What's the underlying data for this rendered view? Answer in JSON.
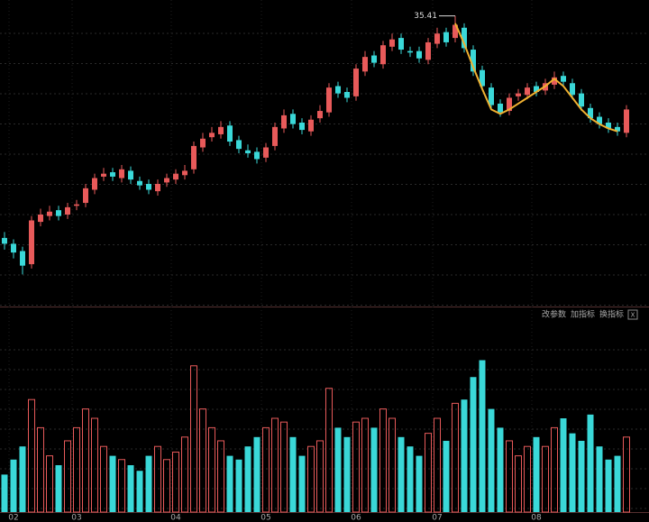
{
  "chart_data": {
    "type": "candlestick",
    "categories": [
      null,
      "02",
      null,
      null,
      null,
      null,
      null,
      null,
      "03",
      null,
      null,
      null,
      null,
      null,
      null,
      null,
      null,
      null,
      null,
      "04",
      null,
      null,
      null,
      null,
      null,
      null,
      null,
      null,
      null,
      "05",
      null,
      null,
      null,
      null,
      null,
      null,
      null,
      null,
      null,
      "06",
      null,
      null,
      null,
      null,
      null,
      null,
      null,
      null,
      "07",
      null,
      null,
      null,
      null,
      null,
      null,
      null,
      null,
      null,
      null,
      "08",
      null,
      null,
      null,
      null,
      null,
      null,
      null,
      null,
      null,
      null
    ],
    "open": [
      20.2,
      19.8,
      19.3,
      18.4,
      21.3,
      21.7,
      22.1,
      21.8,
      22.4,
      22.6,
      23.5,
      24.4,
      24.7,
      24.3,
      24.8,
      24.1,
      23.9,
      23.4,
      24.0,
      24.2,
      24.5,
      24.9,
      26.4,
      27.1,
      27.3,
      27.9,
      26.9,
      26.2,
      26.1,
      25.7,
      26.5,
      27.7,
      28.7,
      28.1,
      27.5,
      28.4,
      28.8,
      30.6,
      30.2,
      29.9,
      31.6,
      32.7,
      32.1,
      33.3,
      33.9,
      33.0,
      33.0,
      32.4,
      33.5,
      34.3,
      33.9,
      34.6,
      33.1,
      31.7,
      30.5,
      29.4,
      28.9,
      29.9,
      30.0,
      30.6,
      30.3,
      30.7,
      31.3,
      30.8,
      30.1,
      29.1,
      28.5,
      28.1,
      27.8,
      27.4
    ],
    "high": [
      20.6,
      20.1,
      19.6,
      21.7,
      22.2,
      22.4,
      22.4,
      22.6,
      22.8,
      23.9,
      24.6,
      25.0,
      25.0,
      25.2,
      25.1,
      24.4,
      24.2,
      24.2,
      24.6,
      24.9,
      25.2,
      26.8,
      27.4,
      27.8,
      28.2,
      28.2,
      27.2,
      26.6,
      26.4,
      26.7,
      28.1,
      29.0,
      29.0,
      28.4,
      28.6,
      29.3,
      30.8,
      30.9,
      30.5,
      32.1,
      33.0,
      33.0,
      33.7,
      34.2,
      34.2,
      33.3,
      33.3,
      33.9,
      34.6,
      34.6,
      35.41,
      34.9,
      33.4,
      32.0,
      30.8,
      29.7,
      30.1,
      30.4,
      30.8,
      30.9,
      31.1,
      31.6,
      31.6,
      31.1,
      30.4,
      29.4,
      28.8,
      28.4,
      28.1,
      29.3
    ],
    "low": [
      19.4,
      18.8,
      17.7,
      18.1,
      21.0,
      21.4,
      21.4,
      21.5,
      22.1,
      22.3,
      23.2,
      24.1,
      24.1,
      24.0,
      23.9,
      23.5,
      23.2,
      23.1,
      23.7,
      23.9,
      24.2,
      24.6,
      26.1,
      26.8,
      27.0,
      26.5,
      26.0,
      25.7,
      25.3,
      25.4,
      26.2,
      27.4,
      27.7,
      27.3,
      27.2,
      28.1,
      28.5,
      29.8,
      29.5,
      29.6,
      31.3,
      31.9,
      31.8,
      33.0,
      32.8,
      32.6,
      32.2,
      32.1,
      33.2,
      33.3,
      33.6,
      32.9,
      31.3,
      30.3,
      29.0,
      28.5,
      28.6,
      29.6,
      29.7,
      29.9,
      30.0,
      30.4,
      30.6,
      29.7,
      28.9,
      28.1,
      27.7,
      27.4,
      27.2,
      27.1
    ],
    "close": [
      19.8,
      19.2,
      18.3,
      21.4,
      21.8,
      22.0,
      21.7,
      22.3,
      22.5,
      23.6,
      24.3,
      24.6,
      24.4,
      24.9,
      24.2,
      23.8,
      23.5,
      23.9,
      24.3,
      24.6,
      24.8,
      26.5,
      27.0,
      27.4,
      27.8,
      26.8,
      26.3,
      26.0,
      25.6,
      26.4,
      27.8,
      28.6,
      28.0,
      27.6,
      28.3,
      28.9,
      30.5,
      30.1,
      29.8,
      31.8,
      32.6,
      32.2,
      33.4,
      33.8,
      33.1,
      32.9,
      32.5,
      33.6,
      34.2,
      33.6,
      34.8,
      33.2,
      31.6,
      30.6,
      29.3,
      28.8,
      29.8,
      30.1,
      30.5,
      30.2,
      30.8,
      31.2,
      30.9,
      30.0,
      29.2,
      28.4,
      28.0,
      27.7,
      27.5,
      29.0
    ],
    "volume": [
      20,
      28,
      35,
      60,
      45,
      30,
      25,
      38,
      45,
      55,
      50,
      35,
      30,
      28,
      25,
      22,
      30,
      35,
      28,
      32,
      40,
      78,
      55,
      45,
      38,
      30,
      28,
      35,
      40,
      45,
      50,
      48,
      40,
      30,
      35,
      38,
      66,
      45,
      40,
      48,
      50,
      45,
      55,
      50,
      40,
      35,
      30,
      42,
      50,
      38,
      58,
      60,
      72,
      81,
      55,
      45,
      38,
      30,
      35,
      40,
      35,
      45,
      50,
      42,
      38,
      52,
      35,
      28,
      30,
      40
    ],
    "overlay": {
      "color": "#f0b030",
      "values": [
        null,
        null,
        null,
        null,
        null,
        null,
        null,
        null,
        null,
        null,
        null,
        null,
        null,
        null,
        null,
        null,
        null,
        null,
        null,
        null,
        null,
        null,
        null,
        null,
        null,
        null,
        null,
        null,
        null,
        null,
        null,
        null,
        null,
        null,
        null,
        null,
        null,
        null,
        null,
        null,
        null,
        null,
        null,
        null,
        null,
        null,
        null,
        null,
        null,
        null,
        34.9,
        33.5,
        31.9,
        30.4,
        29.0,
        28.7,
        29.0,
        29.4,
        29.8,
        30.2,
        30.6,
        31.1,
        30.6,
        29.8,
        29.0,
        28.4,
        28.0,
        27.7,
        27.5,
        null
      ]
    },
    "high_label": "35.41",
    "up_color": "#e85a5a",
    "down_color": "#3ad8d8",
    "ylim": [
      15.5,
      36.5
    ],
    "vol_ylim": [
      0,
      100
    ],
    "buttons": [
      "改参数",
      "加指标",
      "换指标"
    ],
    "close_button": "X"
  }
}
